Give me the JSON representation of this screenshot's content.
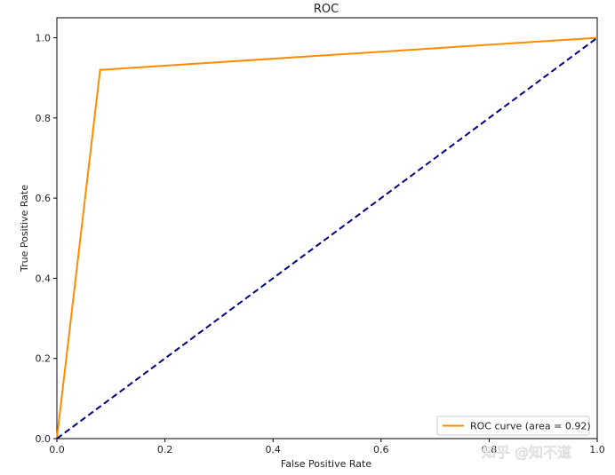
{
  "chart_data": {
    "type": "line",
    "title": "ROC",
    "xlabel": "False Positive Rate",
    "ylabel": "True Positive Rate",
    "xlim": [
      0.0,
      1.0
    ],
    "ylim": [
      0.0,
      1.05
    ],
    "xticks": [
      "0.0",
      "0.2",
      "0.4",
      "0.6",
      "0.8",
      "1.0"
    ],
    "yticks": [
      "0.0",
      "0.2",
      "0.4",
      "0.6",
      "0.8",
      "1.0"
    ],
    "grid": false,
    "legend_position": "bottom-right",
    "series": [
      {
        "name": "ROC curve (area = 0.92)",
        "color": "#ff8c00",
        "style": "solid",
        "x": [
          0.0,
          0.08,
          1.0
        ],
        "y": [
          0.0,
          0.92,
          1.0
        ]
      },
      {
        "color": "#000080",
        "style": "dashed",
        "x": [
          0.0,
          1.0
        ],
        "y": [
          0.0,
          1.0
        ]
      }
    ]
  },
  "watermark": "知乎 @知不道"
}
